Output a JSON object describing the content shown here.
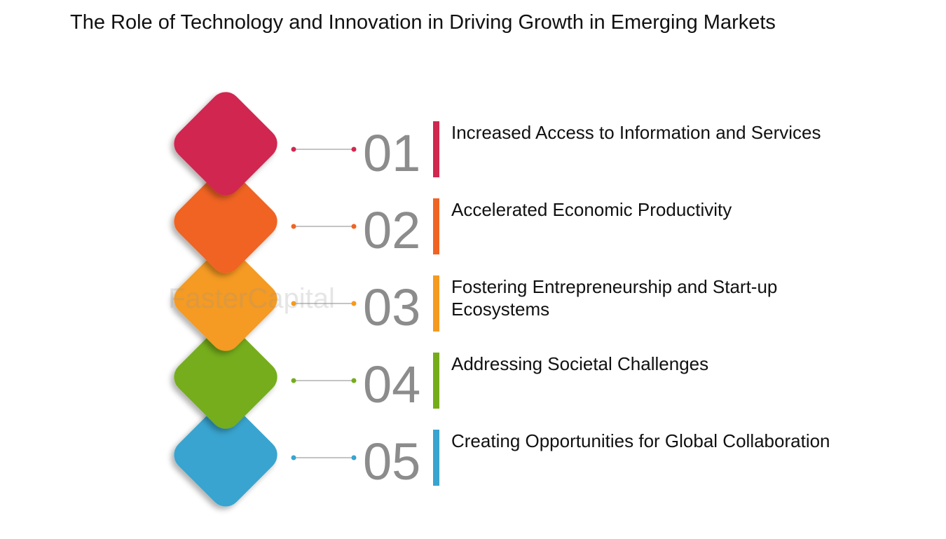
{
  "title": "The Role of Technology and Innovation in Driving Growth in Emerging Markets",
  "watermark": "FasterCapital",
  "items": [
    {
      "number": "01",
      "text": "Increased Access to Information and Services",
      "color": "#d0284f"
    },
    {
      "number": "02",
      "text": "Accelerated Economic Productivity",
      "color": "#f06423"
    },
    {
      "number": "03",
      "text": "Fostering Entrepreneurship and Start-up Ecosystems",
      "color": "#f59a20"
    },
    {
      "number": "04",
      "text": "Addressing Societal Challenges",
      "color": "#75ad1a"
    },
    {
      "number": "05",
      "text": "Creating Opportunities for Global Collaboration",
      "color": "#38a4cf"
    }
  ]
}
